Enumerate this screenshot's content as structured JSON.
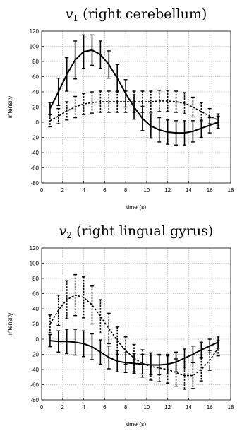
{
  "chart_data": [
    {
      "type": "line",
      "title": "v",
      "title_sub": "1",
      "title_rest": " (right cerebellum)",
      "xlabel": "time (s)",
      "ylabel": "intensity",
      "xlim": [
        0,
        18
      ],
      "ylim": [
        -80,
        120
      ],
      "xticks": [
        0,
        2,
        4,
        6,
        8,
        10,
        12,
        14,
        16,
        18
      ],
      "yticks": [
        -80,
        -60,
        -40,
        -20,
        0,
        20,
        40,
        60,
        80,
        100,
        120
      ],
      "grid": true,
      "series": [
        {
          "style": "solid",
          "x": [
            0.8,
            1.6,
            2.4,
            3.2,
            4.0,
            4.8,
            5.6,
            6.4,
            7.2,
            8.0,
            8.8,
            9.6,
            10.4,
            11.2,
            12.0,
            12.8,
            13.6,
            14.4,
            15.2,
            16.0,
            16.8
          ],
          "y": [
            18,
            40,
            63,
            82,
            93,
            95,
            89,
            76,
            58,
            38,
            20,
            5,
            -5,
            -10,
            -13,
            -14,
            -14,
            -12,
            -8,
            -4,
            0
          ],
          "err": [
            8,
            18,
            22,
            25,
            22,
            20,
            18,
            18,
            18,
            18,
            16,
            16,
            16,
            16,
            16,
            16,
            16,
            14,
            12,
            10,
            8
          ]
        },
        {
          "style": "dashed",
          "x": [
            0.8,
            1.6,
            2.4,
            3.2,
            4.0,
            4.8,
            5.6,
            6.4,
            7.2,
            8.0,
            8.8,
            9.6,
            10.4,
            11.2,
            12.0,
            12.8,
            13.6,
            14.4,
            15.2,
            16.0,
            16.8
          ],
          "y": [
            2,
            8,
            15,
            20,
            24,
            26,
            27,
            27,
            27,
            27,
            27,
            27,
            27,
            28,
            28,
            27,
            25,
            20,
            14,
            8,
            3
          ],
          "err": [
            8,
            10,
            12,
            14,
            14,
            14,
            14,
            14,
            14,
            14,
            14,
            14,
            14,
            14,
            14,
            14,
            14,
            13,
            12,
            10,
            8
          ]
        }
      ]
    },
    {
      "type": "line",
      "title": "v",
      "title_sub": "2",
      "title_rest": " (right lingual gyrus)",
      "xlabel": "time (s)",
      "ylabel": "intensity",
      "xlim": [
        0,
        18
      ],
      "ylim": [
        -80,
        120
      ],
      "xticks": [
        0,
        2,
        4,
        6,
        8,
        10,
        12,
        14,
        16,
        18
      ],
      "yticks": [
        -80,
        -60,
        -40,
        -20,
        0,
        20,
        40,
        60,
        80,
        100,
        120
      ],
      "grid": true,
      "series": [
        {
          "style": "solid",
          "x": [
            0.8,
            1.6,
            2.4,
            3.2,
            4.0,
            4.8,
            5.6,
            6.4,
            7.2,
            8.0,
            8.8,
            9.6,
            10.4,
            11.2,
            12.0,
            12.8,
            13.6,
            14.4,
            15.2,
            16.0,
            16.8
          ],
          "y": [
            -2,
            -3,
            -3,
            -4,
            -6,
            -10,
            -17,
            -24,
            -29,
            -31,
            -32,
            -33,
            -34,
            -34,
            -33,
            -30,
            -25,
            -20,
            -14,
            -9,
            -4
          ],
          "err": [
            8,
            14,
            16,
            17,
            17,
            17,
            16,
            15,
            14,
            13,
            13,
            13,
            13,
            13,
            13,
            13,
            12,
            11,
            10,
            9,
            8
          ]
        },
        {
          "style": "dashed",
          "x": [
            0.8,
            1.6,
            2.4,
            3.2,
            4.0,
            4.8,
            5.6,
            6.4,
            7.2,
            8.0,
            8.8,
            9.6,
            10.4,
            11.2,
            12.0,
            12.8,
            13.6,
            14.4,
            15.2,
            16.0,
            16.8
          ],
          "y": [
            20,
            38,
            52,
            58,
            55,
            45,
            30,
            14,
            -2,
            -15,
            -25,
            -32,
            -36,
            -38,
            -40,
            -44,
            -48,
            -48,
            -40,
            -28,
            -12
          ],
          "err": [
            12,
            20,
            25,
            27,
            27,
            25,
            22,
            20,
            18,
            18,
            18,
            18,
            18,
            18,
            18,
            18,
            18,
            17,
            15,
            13,
            10
          ]
        }
      ]
    }
  ]
}
